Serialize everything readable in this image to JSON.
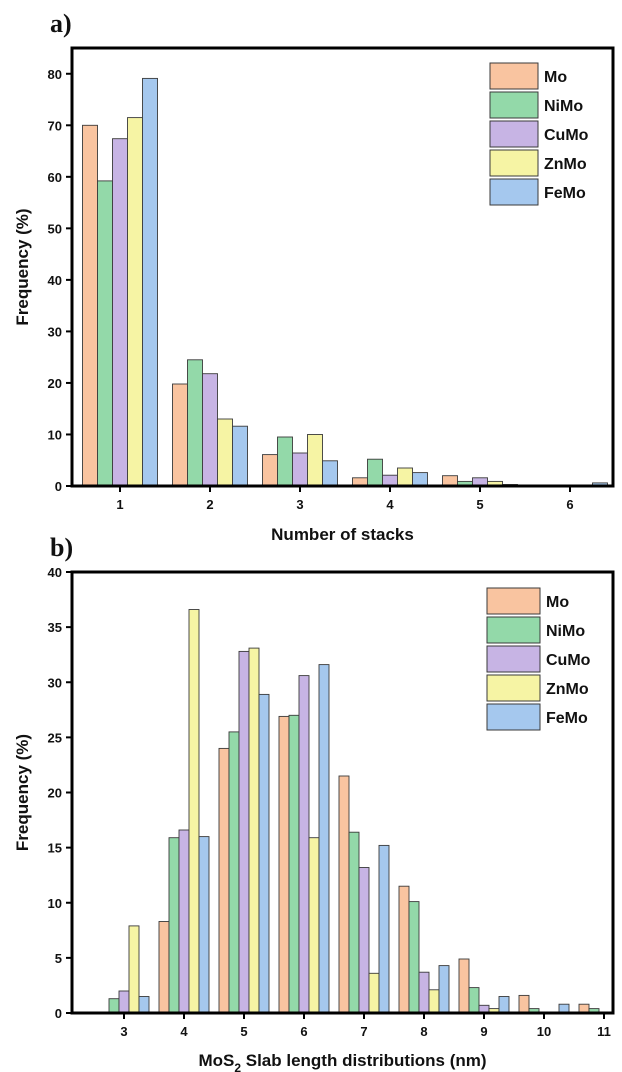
{
  "colors": {
    "Mo": "#f9c4a0",
    "NiMo": "#93d9a9",
    "CuMo": "#c7b4e4",
    "ZnMo": "#f6f4a4",
    "FeMo": "#a5c8ee",
    "stroke": "#3a3a3a"
  },
  "chart_data": [
    {
      "panel_label": "a)",
      "type": "bar",
      "xlabel": "Number of stacks",
      "ylabel": "Frequency (%)",
      "ylim": [
        0,
        85
      ],
      "yticks": [
        0,
        10,
        20,
        30,
        40,
        50,
        60,
        70,
        80
      ],
      "categories": [
        "1",
        "2",
        "3",
        "4",
        "5",
        "6"
      ],
      "legend_position": "top-right",
      "series": [
        {
          "name": "Mo",
          "values": [
            70.0,
            19.8,
            6.1,
            1.6,
            2.0,
            0.2
          ]
        },
        {
          "name": "NiMo",
          "values": [
            59.2,
            24.5,
            9.5,
            5.2,
            0.9,
            0.0
          ]
        },
        {
          "name": "CuMo",
          "values": [
            67.4,
            21.8,
            6.4,
            2.1,
            1.6,
            0.0
          ]
        },
        {
          "name": "ZnMo",
          "values": [
            71.5,
            13.0,
            10.0,
            3.5,
            0.9,
            0.0
          ]
        },
        {
          "name": "FeMo",
          "values": [
            79.1,
            11.6,
            4.9,
            2.6,
            0.3,
            0.6
          ]
        }
      ]
    },
    {
      "panel_label": "b)",
      "type": "bar",
      "xlabel_main": "MoS",
      "xlabel_sub": "2",
      "xlabel_rest": " Slab length distributions (nm)",
      "ylabel": "Frequency (%)",
      "ylim": [
        0,
        40
      ],
      "yticks": [
        0,
        5,
        10,
        15,
        20,
        25,
        30,
        35,
        40
      ],
      "categories": [
        "3",
        "4",
        "5",
        "6",
        "7",
        "8",
        "9",
        "10",
        "11"
      ],
      "legend_position": "top-right",
      "series": [
        {
          "name": "Mo",
          "values": [
            0.0,
            8.3,
            24.0,
            26.9,
            21.5,
            11.5,
            4.9,
            1.6,
            0.8
          ]
        },
        {
          "name": "NiMo",
          "values": [
            1.3,
            15.9,
            25.5,
            27.0,
            16.4,
            10.1,
            2.3,
            0.4,
            0.4
          ]
        },
        {
          "name": "CuMo",
          "values": [
            2.0,
            16.6,
            32.8,
            30.6,
            13.2,
            3.7,
            0.7,
            0.0,
            0.0
          ]
        },
        {
          "name": "ZnMo",
          "values": [
            7.9,
            36.6,
            33.1,
            15.9,
            3.6,
            2.1,
            0.4,
            0.0,
            0.0
          ]
        },
        {
          "name": "FeMo",
          "values": [
            1.5,
            16.0,
            28.9,
            31.6,
            15.2,
            4.3,
            1.5,
            0.8,
            0.0
          ]
        }
      ]
    }
  ]
}
